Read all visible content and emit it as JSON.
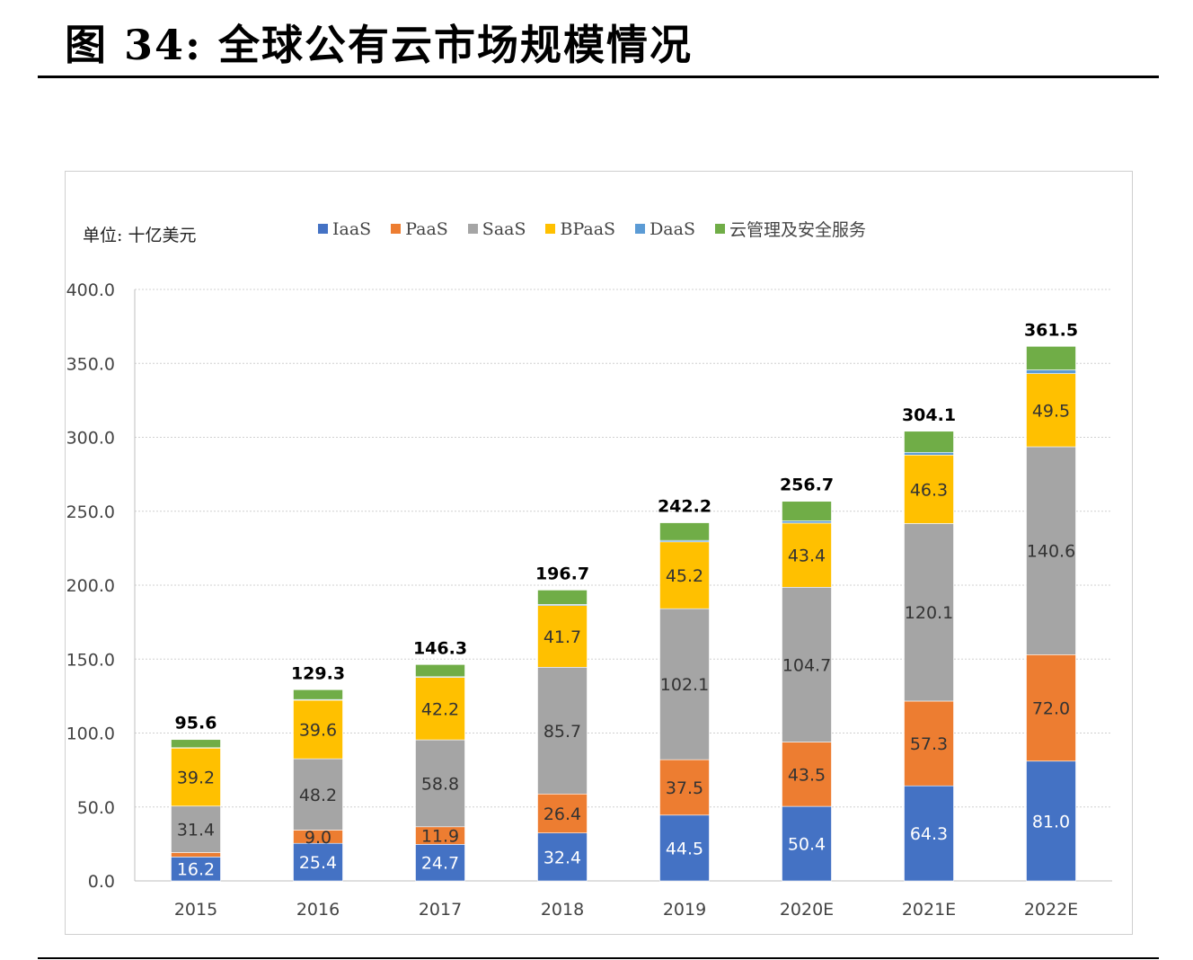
{
  "title": "图 34: 全球公有云市场规模情况",
  "chart_data": {
    "type": "bar",
    "stacked": true,
    "unit_label": "单位: 十亿美元",
    "categories": [
      "2015",
      "2016",
      "2017",
      "2018",
      "2019",
      "2020E",
      "2021E",
      "2022E"
    ],
    "ylim": [
      0,
      400
    ],
    "yticks": [
      "0.0",
      "50.0",
      "100.0",
      "150.0",
      "200.0",
      "250.0",
      "300.0",
      "350.0",
      "400.0"
    ],
    "grid": true,
    "legend_position": "top",
    "series": [
      {
        "name": "IaaS",
        "color": "#4472C4",
        "values": [
          16.2,
          25.4,
          24.7,
          32.4,
          44.5,
          50.4,
          64.3,
          81.0
        ],
        "labels": [
          "16.2",
          "25.4",
          "24.7",
          "32.4",
          "44.5",
          "50.4",
          "64.3",
          "81.0"
        ]
      },
      {
        "name": "PaaS",
        "color": "#ED7D31",
        "values": [
          3.0,
          9.0,
          11.9,
          26.4,
          37.5,
          43.5,
          57.3,
          72.0
        ],
        "labels": [
          "",
          "9.0",
          "11.9",
          "26.4",
          "37.5",
          "43.5",
          "57.3",
          "72.0"
        ]
      },
      {
        "name": "SaaS",
        "color": "#A5A5A5",
        "values": [
          31.4,
          48.2,
          58.8,
          85.7,
          102.1,
          104.7,
          120.1,
          140.6
        ],
        "labels": [
          "31.4",
          "48.2",
          "58.8",
          "85.7",
          "102.1",
          "104.7",
          "120.1",
          "140.6"
        ]
      },
      {
        "name": "BPaaS",
        "color": "#FFC000",
        "values": [
          39.2,
          39.6,
          42.2,
          41.7,
          45.2,
          43.4,
          46.3,
          49.5
        ],
        "labels": [
          "39.2",
          "39.6",
          "42.2",
          "41.7",
          "45.2",
          "43.4",
          "46.3",
          "49.5"
        ]
      },
      {
        "name": "DaaS",
        "color": "#5B9BD5",
        "values": [
          0.3,
          0.5,
          0.5,
          0.8,
          1.0,
          1.5,
          1.8,
          2.5
        ],
        "labels": [
          "",
          "",
          "",
          "",
          "",
          "",
          "",
          ""
        ]
      },
      {
        "name": "云管理及安全服务",
        "color": "#70AD47",
        "values": [
          5.5,
          6.6,
          8.2,
          9.7,
          11.9,
          13.2,
          14.3,
          15.9
        ],
        "labels": [
          "",
          "",
          "",
          "",
          "",
          "",
          "",
          ""
        ]
      }
    ],
    "totals": [
      "95.6",
      "129.3",
      "146.3",
      "196.7",
      "242.2",
      "256.7",
      "304.1",
      "361.5"
    ]
  }
}
